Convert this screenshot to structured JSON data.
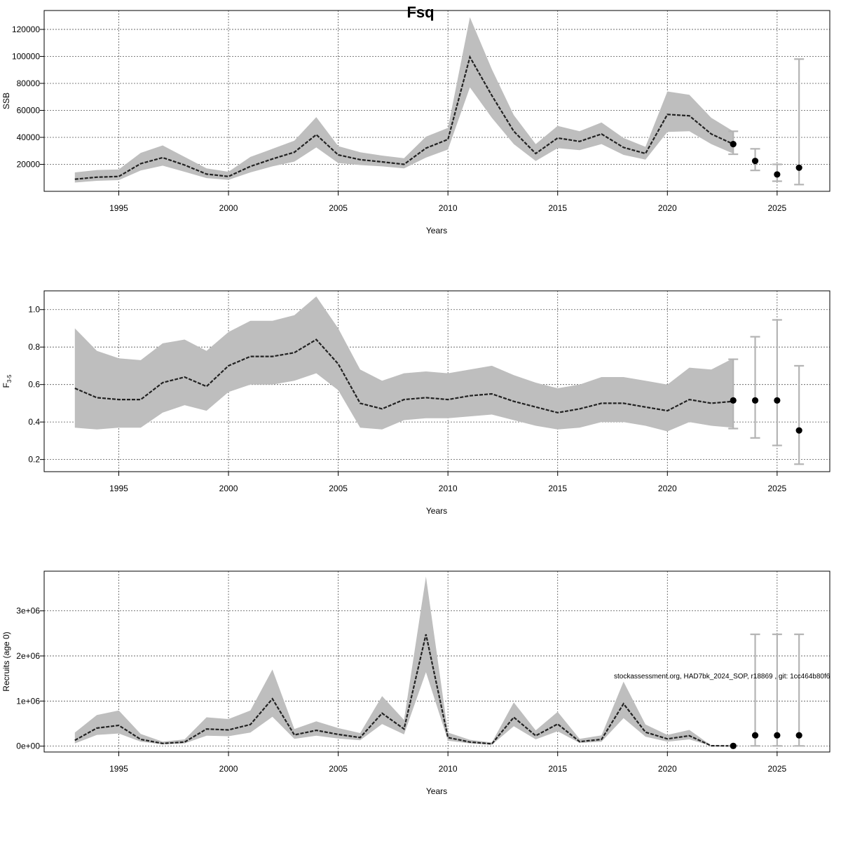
{
  "title": "Fsq",
  "footnote": "stockassessment.org, HAD7bk_2024_SOP, r18869 , git: 1cc464b80f6",
  "chart_data": [
    {
      "type": "line",
      "ylabel": "SSB",
      "xlabel": "Years",
      "xlim": [
        1991.6,
        2027.4
      ],
      "ylim": [
        0,
        134000
      ],
      "yticks": [
        20000,
        40000,
        60000,
        80000,
        100000,
        120000
      ],
      "ytick_labels": [
        "20000",
        "40000",
        "60000",
        "80000",
        "100000",
        "120000"
      ],
      "xticks": [
        1995,
        2000,
        2005,
        2010,
        2015,
        2020,
        2025
      ],
      "xtick_labels": [
        "1995",
        "2000",
        "2005",
        "2010",
        "2015",
        "2020",
        "2025"
      ],
      "grid": true,
      "series": {
        "x": [
          1993,
          1994,
          1995,
          1996,
          1997,
          1998,
          1999,
          2000,
          2001,
          2002,
          2003,
          2004,
          2005,
          2006,
          2007,
          2008,
          2009,
          2010,
          2011,
          2012,
          2013,
          2014,
          2015,
          2016,
          2017,
          2018,
          2019,
          2020,
          2021,
          2022,
          2023
        ],
        "y": [
          9000,
          10500,
          11000,
          20500,
          25000,
          19500,
          12800,
          11000,
          18500,
          24000,
          29000,
          42000,
          27000,
          23500,
          21800,
          20000,
          32000,
          38500,
          99500,
          71000,
          44500,
          28000,
          39500,
          37000,
          42500,
          32500,
          28000,
          57000,
          56000,
          42500,
          35000
        ],
        "lower": [
          6500,
          7800,
          8300,
          15500,
          19000,
          14500,
          9800,
          8500,
          14000,
          18500,
          22000,
          32500,
          21000,
          19500,
          18500,
          17000,
          25000,
          31000,
          77000,
          54500,
          35000,
          22500,
          32000,
          30500,
          35000,
          27000,
          23500,
          44000,
          44500,
          35000,
          28000
        ],
        "upper": [
          14000,
          15800,
          16200,
          28500,
          34000,
          25500,
          17000,
          14500,
          25500,
          31500,
          37500,
          55000,
          33500,
          29000,
          26500,
          24500,
          40500,
          47000,
          129000,
          90500,
          56500,
          35000,
          48500,
          44500,
          51000,
          39500,
          33000,
          74000,
          71500,
          54500,
          44500
        ]
      },
      "forecast": [
        {
          "x": 2023,
          "y": 35000,
          "lower": 27500,
          "upper": 44500
        },
        {
          "x": 2024,
          "y": 22500,
          "lower": 15500,
          "upper": 31500
        },
        {
          "x": 2025,
          "y": 12500,
          "lower": 7500,
          "upper": 20000
        },
        {
          "x": 2026,
          "y": 17500,
          "lower": 5000,
          "upper": 98000
        }
      ]
    },
    {
      "type": "line",
      "ylabel": "F3-5",
      "ylabel_main": "F",
      "ylabel_sub": "3-5",
      "xlabel": "Years",
      "xlim": [
        1991.6,
        2027.4
      ],
      "ylim": [
        0.135,
        1.1
      ],
      "yticks": [
        0.2,
        0.4,
        0.6,
        0.8,
        1.0
      ],
      "ytick_labels": [
        "0.2",
        "0.4",
        "0.6",
        "0.8",
        "1.0"
      ],
      "xticks": [
        1995,
        2000,
        2005,
        2010,
        2015,
        2020,
        2025
      ],
      "xtick_labels": [
        "1995",
        "2000",
        "2005",
        "2010",
        "2015",
        "2020",
        "2025"
      ],
      "grid": true,
      "series": {
        "x": [
          1993,
          1994,
          1995,
          1996,
          1997,
          1998,
          1999,
          2000,
          2001,
          2002,
          2003,
          2004,
          2005,
          2006,
          2007,
          2008,
          2009,
          2010,
          2011,
          2012,
          2013,
          2014,
          2015,
          2016,
          2017,
          2018,
          2019,
          2020,
          2021,
          2022,
          2023
        ],
        "y": [
          0.58,
          0.53,
          0.52,
          0.52,
          0.61,
          0.64,
          0.59,
          0.7,
          0.75,
          0.75,
          0.77,
          0.84,
          0.71,
          0.5,
          0.47,
          0.52,
          0.53,
          0.52,
          0.54,
          0.55,
          0.51,
          0.48,
          0.45,
          0.47,
          0.5,
          0.5,
          0.48,
          0.46,
          0.52,
          0.5,
          0.51
        ],
        "lower": [
          0.37,
          0.36,
          0.37,
          0.37,
          0.45,
          0.49,
          0.46,
          0.56,
          0.6,
          0.6,
          0.62,
          0.66,
          0.57,
          0.37,
          0.36,
          0.41,
          0.42,
          0.42,
          0.43,
          0.44,
          0.41,
          0.38,
          0.36,
          0.37,
          0.4,
          0.4,
          0.38,
          0.35,
          0.4,
          0.38,
          0.37
        ],
        "upper": [
          0.9,
          0.78,
          0.74,
          0.73,
          0.82,
          0.84,
          0.78,
          0.88,
          0.94,
          0.94,
          0.97,
          1.07,
          0.9,
          0.68,
          0.62,
          0.66,
          0.67,
          0.66,
          0.68,
          0.7,
          0.65,
          0.61,
          0.58,
          0.6,
          0.64,
          0.64,
          0.62,
          0.6,
          0.69,
          0.68,
          0.74
        ]
      },
      "forecast": [
        {
          "x": 2023,
          "y": 0.515,
          "lower": 0.365,
          "upper": 0.735
        },
        {
          "x": 2024,
          "y": 0.515,
          "lower": 0.315,
          "upper": 0.855
        },
        {
          "x": 2025,
          "y": 0.515,
          "lower": 0.275,
          "upper": 0.945
        },
        {
          "x": 2026,
          "y": 0.355,
          "lower": 0.175,
          "upper": 0.7
        }
      ]
    },
    {
      "type": "line",
      "ylabel": "Recruits (age 0)",
      "xlabel": "Years",
      "xlim": [
        1991.6,
        2027.4
      ],
      "ylim": [
        -130000,
        3880000
      ],
      "yticks": [
        0,
        1000000,
        2000000,
        3000000
      ],
      "ytick_labels": [
        "0e+00",
        "1e+06",
        "2e+06",
        "3e+06"
      ],
      "xticks": [
        1995,
        2000,
        2005,
        2010,
        2015,
        2020,
        2025
      ],
      "xtick_labels": [
        "1995",
        "2000",
        "2005",
        "2010",
        "2015",
        "2020",
        "2025"
      ],
      "grid": true,
      "series": {
        "x": [
          1993,
          1994,
          1995,
          1996,
          1997,
          1998,
          1999,
          2000,
          2001,
          2002,
          2003,
          2004,
          2005,
          2006,
          2007,
          2008,
          2009,
          2010,
          2011,
          2012,
          2013,
          2014,
          2015,
          2016,
          2017,
          2018,
          2019,
          2020,
          2021,
          2022,
          2023
        ],
        "y": [
          130000,
          400000,
          460000,
          150000,
          60000,
          90000,
          380000,
          360000,
          480000,
          1050000,
          250000,
          350000,
          260000,
          190000,
          730000,
          380000,
          2480000,
          190000,
          90000,
          50000,
          640000,
          230000,
          490000,
          100000,
          150000,
          940000,
          310000,
          160000,
          230000,
          8000,
          5000
        ],
        "lower": [
          60000,
          250000,
          280000,
          100000,
          40000,
          60000,
          230000,
          220000,
          300000,
          650000,
          160000,
          230000,
          170000,
          130000,
          490000,
          260000,
          1640000,
          120000,
          60000,
          30000,
          440000,
          150000,
          330000,
          70000,
          100000,
          620000,
          210000,
          100000,
          150000,
          4000,
          2000
        ],
        "upper": [
          300000,
          690000,
          790000,
          270000,
          100000,
          150000,
          640000,
          600000,
          790000,
          1700000,
          380000,
          550000,
          400000,
          290000,
          1110000,
          580000,
          3760000,
          300000,
          140000,
          80000,
          970000,
          350000,
          760000,
          160000,
          240000,
          1430000,
          480000,
          250000,
          360000,
          15000,
          10000
        ]
      },
      "forecast": [
        {
          "x": 2023,
          "y": 5000,
          "lower": 2000,
          "upper": 10000
        },
        {
          "x": 2024,
          "y": 240000,
          "lower": 5000,
          "upper": 2480000
        },
        {
          "x": 2025,
          "y": 240000,
          "lower": 5000,
          "upper": 2480000
        },
        {
          "x": 2026,
          "y": 240000,
          "lower": 5000,
          "upper": 2480000
        }
      ]
    }
  ]
}
